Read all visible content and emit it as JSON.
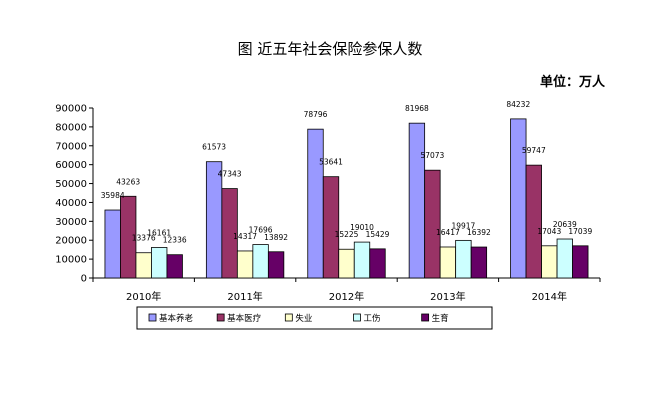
{
  "chart_data": {
    "type": "bar",
    "title": "图    近五年社会保险参保人数",
    "unit_label": "单位：万人",
    "categories": [
      "2010年",
      "2011年",
      "2012年",
      "2013年",
      "2014年"
    ],
    "series": [
      {
        "name": "基本养老",
        "color": "#9999ff",
        "values": [
          35984,
          61573,
          78796,
          81968,
          84232
        ]
      },
      {
        "name": "基本医疗",
        "color": "#993366",
        "values": [
          43263,
          47343,
          53641,
          57073,
          59747
        ]
      },
      {
        "name": "失业",
        "color": "#ffffcc",
        "values": [
          13376,
          14317,
          15225,
          16417,
          17043
        ]
      },
      {
        "name": "工伤",
        "color": "#ccffff",
        "values": [
          16161,
          17696,
          19010,
          19917,
          20639
        ]
      },
      {
        "name": "生育",
        "color": "#660066",
        "values": [
          12336,
          13892,
          15429,
          16392,
          17039
        ]
      }
    ],
    "ylim": [
      0,
      90000
    ],
    "yticks": [
      0,
      10000,
      20000,
      30000,
      40000,
      50000,
      60000,
      70000,
      80000,
      90000
    ],
    "grid": false,
    "legend_position": "bottom"
  }
}
